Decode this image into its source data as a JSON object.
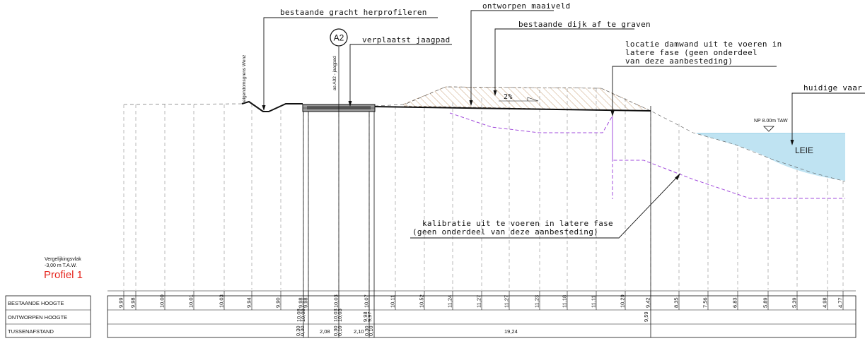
{
  "annotations": {
    "gracht": "bestaande gracht herprofileren",
    "maaiveld": "ontworpen maaiveld",
    "dijk": "bestaande dijk af te graven",
    "jaagpad": "verplaatst jaagpad",
    "damwand": [
      "locatie damwand uit te voeren in",
      "latere fase (geen onderdeel",
      "van deze aanbesteding)"
    ],
    "vaarweg": "huidige vaar",
    "kalibratie": [
      "kalibratie uit te voeren in latere fase",
      "(geen onderdeel van deze aanbesteding)"
    ],
    "slope": "2%",
    "water_level": "NP 8.00m TAW",
    "river": "LEIE",
    "boundary": "eigendomsgrens Wenz",
    "axis": "as A02 - jaagpad",
    "section_tag": "A2"
  },
  "profile": {
    "reference_label": "Vergelijkingsvlak",
    "reference_value": "-3,00 m T.A.W.",
    "title": "Profiel 1"
  },
  "table": {
    "rows": [
      "BESTAANDE HOOGTE",
      "ONTWORPEN  HOOGTE",
      "TUSSENAFSTAND"
    ],
    "existing_heights": [
      "9,99",
      "9,98",
      "10,00",
      "10,01",
      "10,03",
      "9,94",
      "9,90",
      "9,98",
      "9,98",
      "10,03",
      "10,07",
      "10,11",
      "10,52",
      "11,24",
      "11,27",
      "11,27",
      "11,23",
      "11,18",
      "11,11",
      "10,29",
      "9,42",
      "8,35",
      "7,56",
      "6,83",
      "5,89",
      "5,39",
      "4,98",
      "4,77"
    ],
    "designed_heights": [
      "10,08",
      "10,08",
      "10,03",
      "10,03",
      "9,98",
      "9,97",
      "9,59"
    ],
    "distances": [
      "0,30",
      "0,30",
      "2,08",
      "0,30",
      "0,10",
      "2,10",
      "0,30",
      "0,10",
      "19,24"
    ]
  }
}
